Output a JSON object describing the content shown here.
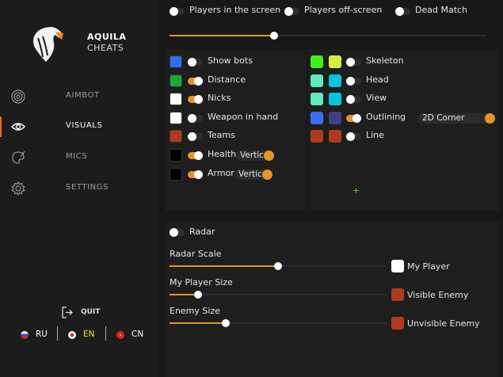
{
  "brand": {
    "line1": "AQUILA",
    "line2": "CHEATS"
  },
  "nav": [
    {
      "label": "AIMBOT",
      "icon": "target-icon"
    },
    {
      "label": "VISUALS",
      "icon": "eye-icon",
      "active": true
    },
    {
      "label": "MICS",
      "icon": "palette-icon"
    },
    {
      "label": "SETTINGS",
      "icon": "gear-icon"
    }
  ],
  "quit": "QUIT",
  "languages": [
    {
      "code": "RU",
      "color": "#ffffff"
    },
    {
      "code": "EN",
      "color": "#e8e82a",
      "selected": true
    },
    {
      "code": "CN",
      "color": "#ffffff"
    }
  ],
  "top": {
    "options": [
      {
        "label": "Players in the screen",
        "on": false
      },
      {
        "label": "Players off-screen",
        "on": false
      },
      {
        "label": "Dead Match",
        "on": false
      }
    ],
    "slider": 33
  },
  "left_items": [
    {
      "label": "Show bots",
      "color": "#2f6fea",
      "on": false
    },
    {
      "label": "Distance",
      "color": "#1fa733",
      "on": true
    },
    {
      "label": "Nicks",
      "color": "#ffffff",
      "on": true
    },
    {
      "label": "Weapon in hand",
      "color": "#ffffff",
      "on": false
    },
    {
      "label": "Teams",
      "color": "#b03a1e",
      "on": false
    },
    {
      "label": "Health",
      "color": "#000000",
      "on": true,
      "dropdown": "Vertical"
    },
    {
      "label": "Armor",
      "color": "#000000",
      "on": true,
      "dropdown": "Vertical"
    }
  ],
  "right_items": [
    {
      "label": "Skeleton",
      "colors": [
        "#3ef21a",
        "#d8ec3c"
      ],
      "on": false
    },
    {
      "label": "Head",
      "colors": [
        "#5fe9bd",
        "#08c4df"
      ],
      "on": false
    },
    {
      "label": "View",
      "colors": [
        "#5fe9bd",
        "#08c4df"
      ],
      "on": false
    },
    {
      "label": "Outlining",
      "colors": [
        "#3d6cf0",
        "#3e3f86"
      ],
      "on": true,
      "dropdown": "2D Corner"
    },
    {
      "label": "Line",
      "colors": [
        "#b03a1e",
        "#b03a1e"
      ],
      "on": false
    }
  ],
  "add_label": "+",
  "radar": {
    "label": "Radar",
    "on": false,
    "sliders": [
      {
        "label": "Radar Scale",
        "value": 50
      },
      {
        "label": "My Player Size",
        "value": 13
      },
      {
        "label": "Enemy Size",
        "value": 26
      }
    ],
    "colors": [
      {
        "label": "My Player",
        "color": "#ffffff"
      },
      {
        "label": "Visible Enemy",
        "color": "#b03a1e"
      },
      {
        "label": "Unvisible Enemy",
        "color": "#b03a1e"
      }
    ]
  },
  "accent": "#e8922a"
}
